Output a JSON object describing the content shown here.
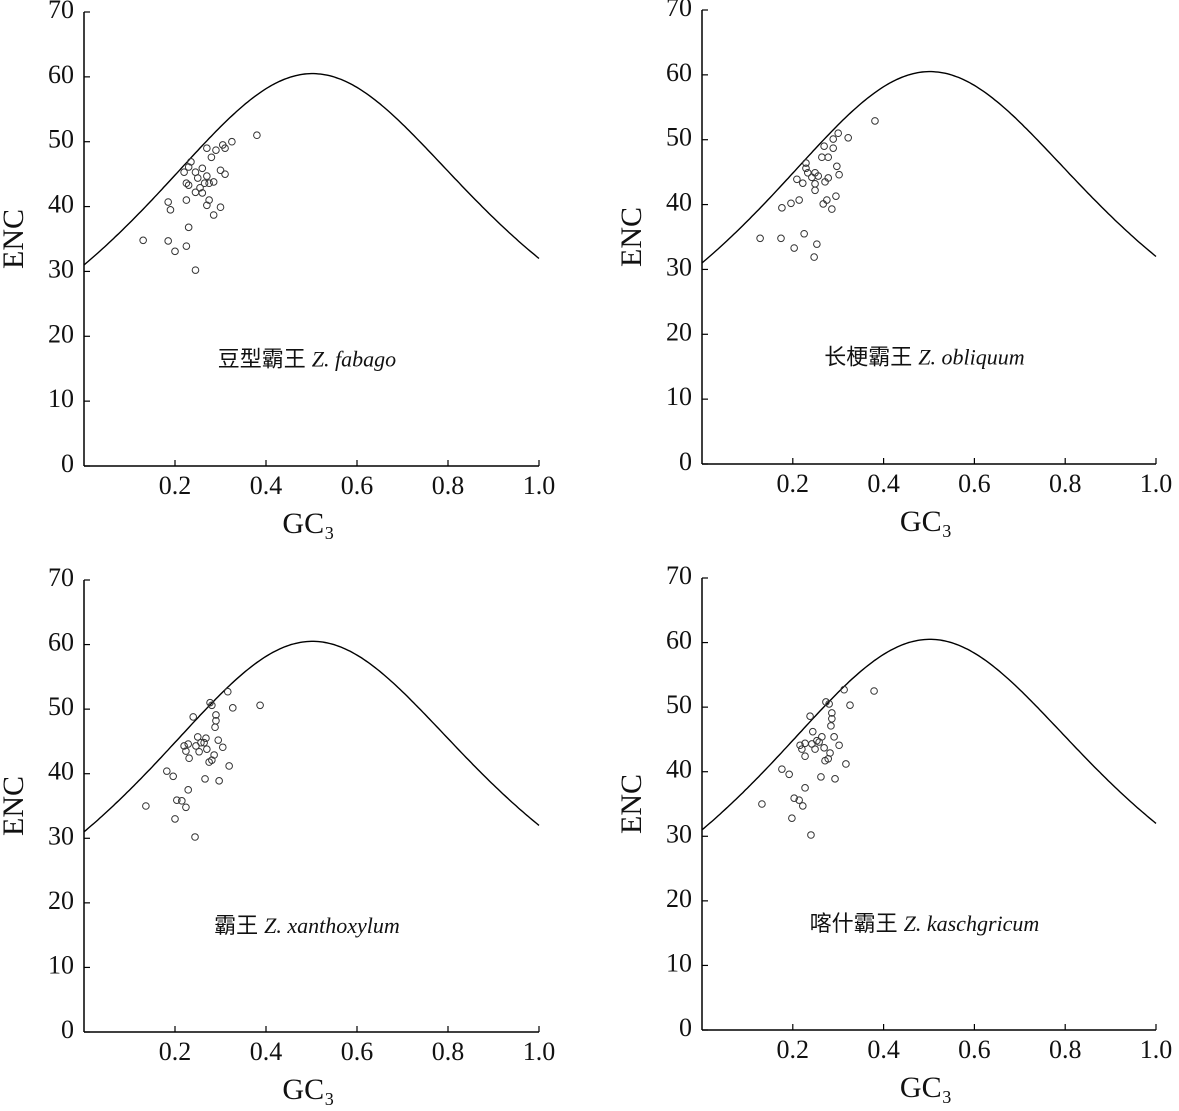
{
  "chart_data": [
    {
      "type": "scatter",
      "label_cn": "豆型霸王",
      "label_species": "Z. fabago",
      "xlabel": "GC₃",
      "ylabel": "ENC",
      "xlim": [
        0,
        1
      ],
      "ylim": [
        0,
        70
      ],
      "xticks": [
        0.2,
        0.4,
        0.6,
        0.8,
        {
          "value": 1,
          "label": "1.0"
        }
      ],
      "yticks": [
        0,
        10,
        20,
        30,
        40,
        50,
        60,
        70
      ],
      "color": "#333333",
      "x": [
        0.13,
        0.185,
        0.2,
        0.225,
        0.245,
        0.23,
        0.185,
        0.19,
        0.225,
        0.225,
        0.23,
        0.22,
        0.23,
        0.235,
        0.245,
        0.25,
        0.245,
        0.255,
        0.26,
        0.27,
        0.27,
        0.275,
        0.27,
        0.275,
        0.28,
        0.285,
        0.29,
        0.285,
        0.3,
        0.305,
        0.31,
        0.31,
        0.3,
        0.325,
        0.38,
        0.265,
        0.26
      ],
      "values": [
        34.8,
        34.7,
        33.1,
        33.9,
        30.2,
        36.8,
        40.7,
        39.5,
        41.0,
        43.6,
        43.3,
        45.3,
        46.1,
        46.9,
        45.3,
        44.4,
        42.2,
        42.9,
        45.9,
        44.7,
        49.0,
        43.6,
        40.2,
        41.0,
        47.6,
        43.8,
        48.7,
        38.7,
        45.6,
        49.5,
        45.0,
        49.0,
        39.9,
        50.0,
        51.0,
        43.6,
        42.1
      ]
    },
    {
      "type": "scatter",
      "label_cn": "长梗霸王",
      "label_species": "Z. obliquum",
      "xlabel": "GC₃",
      "ylabel": "ENC",
      "xlim": [
        0,
        1
      ],
      "ylim": [
        0,
        70
      ],
      "xticks": [
        0.2,
        0.4,
        0.6,
        0.8,
        {
          "value": 1,
          "label": "1.0"
        }
      ],
      "yticks": [
        0,
        10,
        20,
        30,
        40,
        50,
        60,
        70
      ],
      "color": "#333333",
      "x": [
        0.128,
        0.174,
        0.203,
        0.225,
        0.247,
        0.253,
        0.176,
        0.196,
        0.214,
        0.209,
        0.222,
        0.229,
        0.229,
        0.233,
        0.242,
        0.249,
        0.256,
        0.249,
        0.249,
        0.264,
        0.269,
        0.271,
        0.278,
        0.278,
        0.267,
        0.275,
        0.289,
        0.289,
        0.297,
        0.3,
        0.286,
        0.295,
        0.302,
        0.322,
        0.381
      ],
      "values": [
        34.8,
        34.8,
        33.3,
        35.5,
        31.9,
        33.9,
        39.5,
        40.2,
        40.7,
        43.9,
        43.3,
        46.4,
        45.6,
        44.9,
        44.2,
        44.9,
        44.4,
        43.2,
        42.2,
        47.3,
        49.0,
        43.5,
        44.1,
        47.3,
        40.1,
        40.7,
        50.1,
        48.7,
        45.9,
        51.0,
        39.3,
        41.3,
        44.6,
        50.3,
        52.9
      ]
    },
    {
      "type": "scatter",
      "label_cn": "霸王",
      "label_species": "Z. xanthoxylum",
      "xlabel": "GC₃",
      "ylabel": "ENC",
      "xlim": [
        0,
        1
      ],
      "ylim": [
        0,
        70
      ],
      "xticks": [
        0.2,
        0.4,
        0.6,
        0.8,
        {
          "value": 1,
          "label": "1.0"
        }
      ],
      "yticks": [
        0,
        10,
        20,
        30,
        40,
        50,
        60,
        70
      ],
      "color": "#333333",
      "x": [
        0.136,
        0.182,
        0.196,
        0.2,
        0.204,
        0.215,
        0.224,
        0.229,
        0.244,
        0.22,
        0.229,
        0.224,
        0.231,
        0.24,
        0.246,
        0.25,
        0.253,
        0.257,
        0.264,
        0.268,
        0.266,
        0.27,
        0.277,
        0.281,
        0.281,
        0.275,
        0.288,
        0.29,
        0.29,
        0.295,
        0.297,
        0.305,
        0.319,
        0.316,
        0.327,
        0.387,
        0.286
      ],
      "values": [
        35.0,
        40.4,
        39.6,
        33.0,
        35.9,
        35.8,
        34.8,
        37.5,
        30.2,
        44.3,
        44.6,
        43.5,
        42.4,
        48.8,
        44.3,
        45.7,
        43.4,
        44.8,
        44.8,
        45.5,
        39.2,
        43.8,
        51.0,
        50.6,
        42.1,
        41.8,
        47.2,
        49.1,
        48.2,
        45.2,
        38.9,
        44.1,
        41.2,
        52.7,
        50.2,
        50.6,
        42.9
      ]
    },
    {
      "type": "scatter",
      "label_cn": "喀什霸王",
      "label_species": "Z. kaschgricum",
      "xlabel": "GC₃",
      "ylabel": "ENC",
      "xlim": [
        0,
        1
      ],
      "ylim": [
        0,
        70
      ],
      "xticks": [
        0.2,
        0.4,
        0.6,
        0.8,
        {
          "value": 1,
          "label": "1.0"
        }
      ],
      "yticks": [
        0,
        10,
        20,
        30,
        40,
        50,
        60,
        70
      ],
      "color": "#333333",
      "x": [
        0.132,
        0.176,
        0.192,
        0.198,
        0.203,
        0.214,
        0.222,
        0.227,
        0.24,
        0.216,
        0.227,
        0.22,
        0.227,
        0.238,
        0.242,
        0.244,
        0.249,
        0.253,
        0.258,
        0.264,
        0.262,
        0.269,
        0.273,
        0.28,
        0.278,
        0.271,
        0.284,
        0.286,
        0.286,
        0.291,
        0.293,
        0.302,
        0.317,
        0.313,
        0.326,
        0.379,
        0.282
      ],
      "values": [
        35.0,
        40.4,
        39.6,
        32.8,
        35.9,
        35.6,
        34.7,
        37.5,
        30.2,
        44.1,
        44.4,
        43.5,
        42.4,
        48.6,
        44.3,
        46.2,
        43.5,
        44.8,
        44.6,
        45.4,
        39.2,
        43.7,
        50.8,
        50.5,
        42.0,
        41.7,
        47.1,
        49.1,
        48.2,
        45.4,
        38.9,
        44.1,
        41.2,
        52.7,
        50.3,
        52.5,
        42.9
      ]
    }
  ]
}
